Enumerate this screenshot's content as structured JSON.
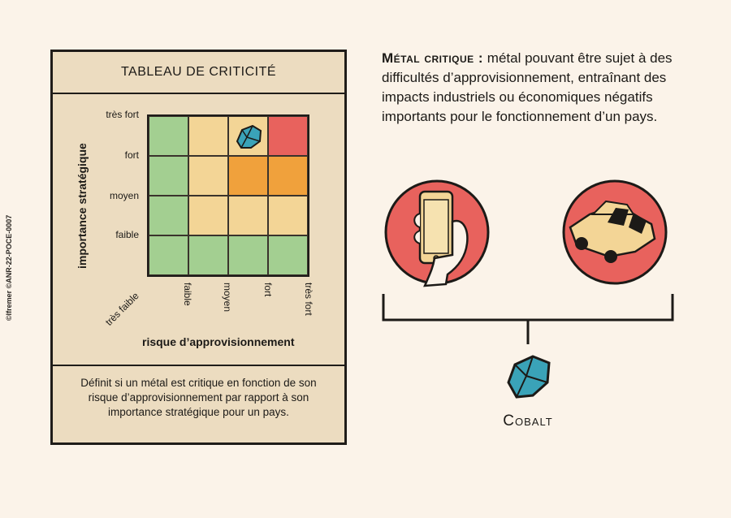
{
  "credit": "©Ifremer ©ANR-22-POCE-0007",
  "card": {
    "title": "TABLEAU DE CRITICITÉ",
    "y_axis_label": "importance stratégique",
    "x_axis_label": "risque d’approvisionnement",
    "y_ticks": [
      "très fort",
      "fort",
      "moyen",
      "faible"
    ],
    "x_ticks": [
      "très faible",
      "faible",
      "moyen",
      "fort",
      "très fort"
    ],
    "footer": "Définit si un métal est critique en fonction de son risque d’approvisionnement par rapport à son importance stratégique pour un pays."
  },
  "matrix_colors": [
    [
      "#a3cf91",
      "#f3d596",
      "#f3d596",
      "#e8625d"
    ],
    [
      "#a3cf91",
      "#f3d596",
      "#f0a13c",
      "#f0a13c"
    ],
    [
      "#a3cf91",
      "#f3d596",
      "#f3d596",
      "#f3d596"
    ],
    [
      "#a3cf91",
      "#a3cf91",
      "#a3cf91",
      "#a3cf91"
    ]
  ],
  "definition": {
    "term": "Métal critique :",
    "text": "métal pouvant être sujet à des difficultés d’approvisionnement, entraînant des impacts industriels ou économiques négatifs importants pour le fonctionnement d’un pays."
  },
  "icons": [
    "smartphone-icon",
    "car-icon",
    "cobalt-rock-icon"
  ],
  "cobalt_label": "Cobalt"
}
